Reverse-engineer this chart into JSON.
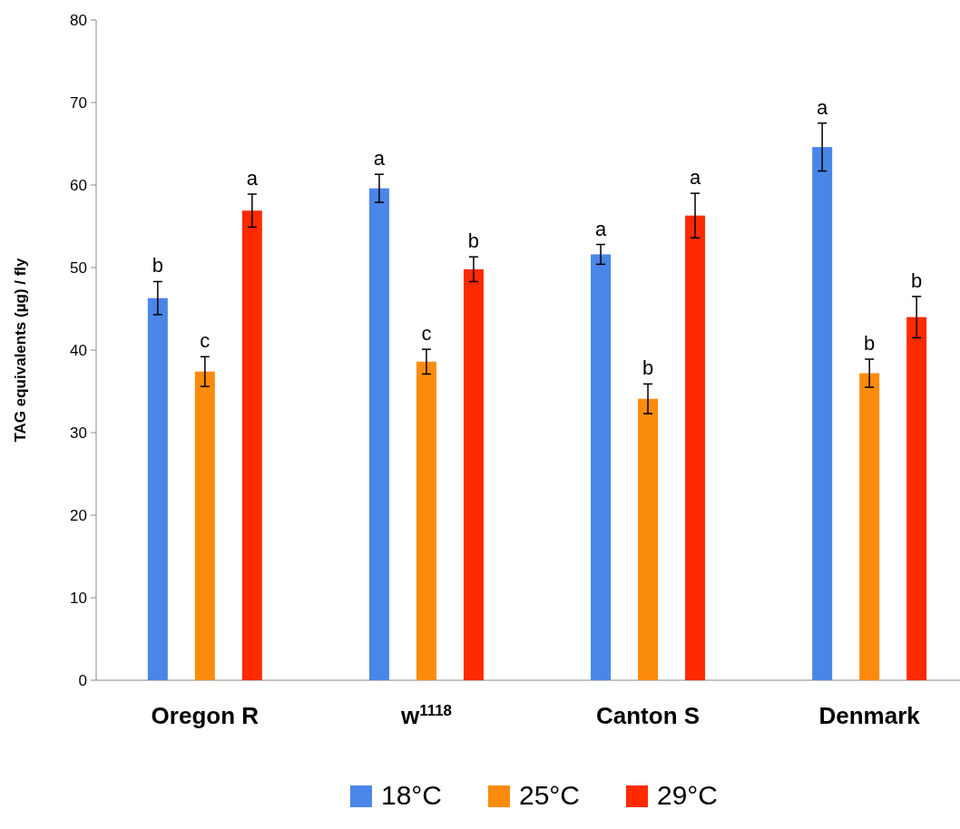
{
  "chart_data": {
    "type": "bar",
    "ylabel": "TAG equivalents (µg) / fly",
    "categories": [
      "Oregon R",
      "w$^{1118}$",
      "Canton S",
      "Denmark"
    ],
    "ylim": [
      0,
      80
    ],
    "yticks": [
      0,
      10,
      20,
      30,
      40,
      50,
      60,
      70,
      80
    ],
    "grid": false,
    "legend": "bottom",
    "series": [
      {
        "name": "18°C",
        "color": "#4a86e8",
        "values": [
          46.3,
          59.6,
          51.6,
          64.6
        ],
        "errors": [
          2,
          1.7,
          1.2,
          2.9
        ],
        "value_labels": [
          "b",
          "a",
          "a",
          "a"
        ]
      },
      {
        "name": "25°C",
        "color": "#fb8b0c",
        "values": [
          37.4,
          38.6,
          34.1,
          37.2
        ],
        "errors": [
          1.8,
          1.5,
          1.8,
          1.7
        ],
        "value_labels": [
          "c",
          "c",
          "b",
          "b"
        ]
      },
      {
        "name": "29°C",
        "color": "#ff2a00",
        "values": [
          56.9,
          49.8,
          56.3,
          44.0
        ],
        "errors": [
          2,
          1.5,
          2.7,
          2.5
        ],
        "value_labels": [
          "a",
          "b",
          "a",
          "b"
        ]
      }
    ]
  }
}
